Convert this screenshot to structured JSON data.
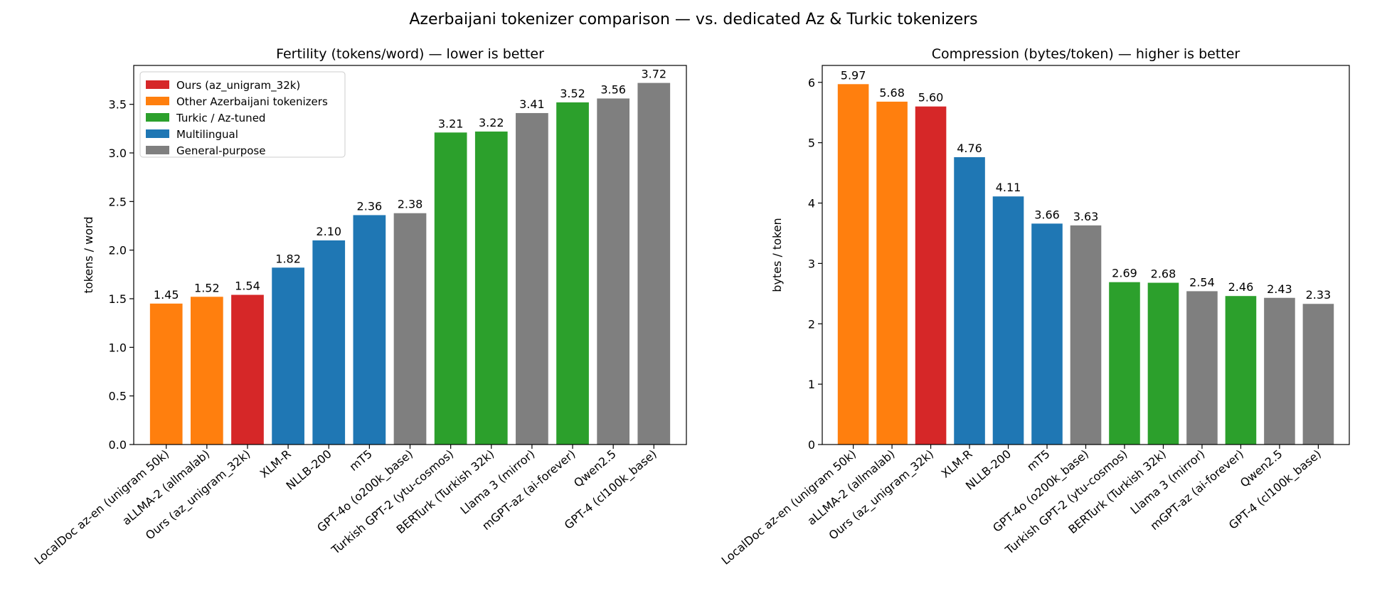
{
  "figure": {
    "suptitle": "Azerbaijani tokenizer comparison — vs. dedicated Az & Turkic tokenizers"
  },
  "legend": {
    "placement": "upper-left",
    "entries": [
      {
        "label": "Ours (az_unigram_32k)",
        "color": "#d62728"
      },
      {
        "label": "Other Azerbaijani tokenizers",
        "color": "#ff7f0e"
      },
      {
        "label": "Turkic / Az-tuned",
        "color": "#2ca02c"
      },
      {
        "label": "Multilingual",
        "color": "#1f77b4"
      },
      {
        "label": "General-purpose",
        "color": "#7f7f7f"
      }
    ]
  },
  "chart_data": [
    {
      "type": "bar",
      "title": "Fertility (tokens/word) — lower is better",
      "xlabel": "",
      "ylabel": "tokens / word",
      "ylim": [
        0,
        3.9
      ],
      "yticks": [
        0.0,
        0.5,
        1.0,
        1.5,
        2.0,
        2.5,
        3.0,
        3.5
      ],
      "ytick_labels": [
        "0.0",
        "0.5",
        "1.0",
        "1.5",
        "2.0",
        "2.5",
        "3.0",
        "3.5"
      ],
      "grid": false,
      "legend": true,
      "categories": [
        "LocalDoc az-en (unigram 50k)",
        "aLLMA-2 (allmalab)",
        "Ours (az_unigram_32k)",
        "XLM-R",
        "NLLB-200",
        "mT5",
        "GPT-4o (o200k_base)",
        "Turkish GPT-2 (ytu-cosmos)",
        "BERTurk (Turkish 32k)",
        "Llama 3 (mirror)",
        "mGPT-az (ai-forever)",
        "Qwen2.5",
        "GPT-4 (cl100k_base)"
      ],
      "values": [
        1.45,
        1.52,
        1.54,
        1.82,
        2.1,
        2.36,
        2.38,
        3.21,
        3.22,
        3.41,
        3.52,
        3.56,
        3.72
      ],
      "value_labels": [
        "1.45",
        "1.52",
        "1.54",
        "1.82",
        "2.10",
        "2.36",
        "2.38",
        "3.21",
        "3.22",
        "3.41",
        "3.52",
        "3.56",
        "3.72"
      ],
      "colors": [
        "#ff7f0e",
        "#ff7f0e",
        "#d62728",
        "#1f77b4",
        "#1f77b4",
        "#1f77b4",
        "#7f7f7f",
        "#2ca02c",
        "#2ca02c",
        "#7f7f7f",
        "#2ca02c",
        "#7f7f7f",
        "#7f7f7f"
      ]
    },
    {
      "type": "bar",
      "title": "Compression (bytes/token) — higher is better",
      "xlabel": "",
      "ylabel": "bytes / token",
      "ylim": [
        0,
        6.28
      ],
      "yticks": [
        0,
        1,
        2,
        3,
        4,
        5,
        6
      ],
      "ytick_labels": [
        "0",
        "1",
        "2",
        "3",
        "4",
        "5",
        "6"
      ],
      "grid": false,
      "legend": false,
      "categories": [
        "LocalDoc az-en (unigram 50k)",
        "aLLMA-2 (allmalab)",
        "Ours (az_unigram_32k)",
        "XLM-R",
        "NLLB-200",
        "mT5",
        "GPT-4o (o200k_base)",
        "Turkish GPT-2 (ytu-cosmos)",
        "BERTurk (Turkish 32k)",
        "Llama 3 (mirror)",
        "mGPT-az (ai-forever)",
        "Qwen2.5",
        "GPT-4 (cl100k_base)"
      ],
      "values": [
        5.97,
        5.68,
        5.6,
        4.76,
        4.11,
        3.66,
        3.63,
        2.69,
        2.68,
        2.54,
        2.46,
        2.43,
        2.33
      ],
      "value_labels": [
        "5.97",
        "5.68",
        "5.60",
        "4.76",
        "4.11",
        "3.66",
        "3.63",
        "2.69",
        "2.68",
        "2.54",
        "2.46",
        "2.43",
        "2.33"
      ],
      "colors": [
        "#ff7f0e",
        "#ff7f0e",
        "#d62728",
        "#1f77b4",
        "#1f77b4",
        "#1f77b4",
        "#7f7f7f",
        "#2ca02c",
        "#2ca02c",
        "#7f7f7f",
        "#2ca02c",
        "#7f7f7f",
        "#7f7f7f"
      ]
    }
  ]
}
